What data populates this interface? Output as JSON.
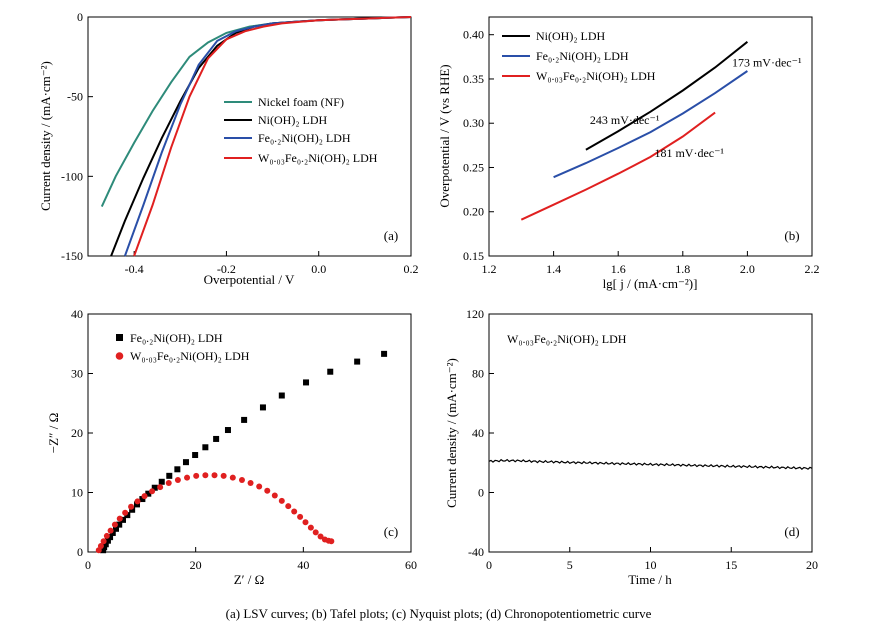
{
  "caption": "(a) LSV curves; (b) Tafel plots; (c) Nyquist plots; (d) Chronopotentiometric curve",
  "chart_data": [
    {
      "type": "line",
      "panel": "(a)",
      "xlabel": "Overpotential / V",
      "ylabel": "Current density / (mA·cm⁻²)",
      "xlim": [
        -0.5,
        0.2
      ],
      "ylim": [
        -150,
        0
      ],
      "xticks": [
        "-0.4",
        "-0.2",
        "0.0",
        "0.2"
      ],
      "yticks": [
        "-150",
        "-100",
        "-50",
        "0"
      ],
      "legend_position": "right",
      "series": [
        {
          "name": "Nickel foam (NF)",
          "color": "#2e8b7a",
          "x": [
            -0.47,
            -0.44,
            -0.4,
            -0.36,
            -0.32,
            -0.28,
            -0.24,
            -0.2,
            -0.15,
            -0.1,
            -0.05,
            0.0,
            0.05,
            0.1,
            0.15,
            0.2
          ],
          "y": [
            -119,
            -100,
            -79,
            -59,
            -41,
            -25,
            -16,
            -10,
            -6,
            -4,
            -3,
            -2,
            -1.5,
            -1,
            -0.5,
            0
          ]
        },
        {
          "name": "Ni(OH)₂ LDH",
          "color": "#000000",
          "x": [
            -0.45,
            -0.42,
            -0.38,
            -0.34,
            -0.3,
            -0.26,
            -0.22,
            -0.18,
            -0.14,
            -0.1,
            -0.05,
            0.0,
            0.05,
            0.1,
            0.15,
            0.2
          ],
          "y": [
            -150,
            -128,
            -101,
            -76,
            -53,
            -32,
            -18,
            -10,
            -6,
            -4,
            -3,
            -2,
            -1.5,
            -1,
            -0.5,
            0
          ]
        },
        {
          "name": "Fe₀.₂Ni(OH)₂ LDH",
          "color": "#2a4fa8",
          "x": [
            -0.42,
            -0.38,
            -0.34,
            -0.3,
            -0.26,
            -0.22,
            -0.18,
            -0.14,
            -0.1,
            -0.05,
            0.0,
            0.05,
            0.1,
            0.15,
            0.2
          ],
          "y": [
            -150,
            -118,
            -85,
            -55,
            -30,
            -15,
            -9,
            -6,
            -4,
            -3,
            -2,
            -1.5,
            -1,
            -0.5,
            0
          ]
        },
        {
          "name": "W₀.₀₃Fe₀.₂Ni(OH)₂ LDH",
          "color": "#e02020",
          "x": [
            -0.4,
            -0.36,
            -0.32,
            -0.28,
            -0.24,
            -0.2,
            -0.16,
            -0.12,
            -0.08,
            -0.04,
            0.0,
            0.05,
            0.1,
            0.15,
            0.2
          ],
          "y": [
            -150,
            -118,
            -82,
            -50,
            -26,
            -14,
            -9,
            -6,
            -4,
            -3,
            -2,
            -1.5,
            -1,
            -0.5,
            0
          ]
        }
      ]
    },
    {
      "type": "line",
      "panel": "(b)",
      "xlabel": "lg[ j / (mA·cm⁻²)]",
      "ylabel": "Overpotential / V (vs RHE)",
      "xlim": [
        1.2,
        2.2
      ],
      "ylim": [
        0.15,
        0.42
      ],
      "xticks": [
        "1.2",
        "1.4",
        "1.6",
        "1.8",
        "2.0",
        "2.2"
      ],
      "yticks": [
        "0.15",
        "0.20",
        "0.25",
        "0.30",
        "0.35",
        "0.40"
      ],
      "legend_position": "top-left",
      "series": [
        {
          "name": "Ni(OH)₂ LDH",
          "color": "#000000",
          "x": [
            1.5,
            1.6,
            1.7,
            1.8,
            1.9,
            2.0
          ],
          "y": [
            0.27,
            0.291,
            0.313,
            0.337,
            0.363,
            0.392
          ]
        },
        {
          "name": "Fe₀.₂Ni(OH)₂ LDH",
          "color": "#2a4fa8",
          "x": [
            1.4,
            1.5,
            1.6,
            1.7,
            1.8,
            1.9,
            2.0
          ],
          "y": [
            0.239,
            0.255,
            0.272,
            0.29,
            0.311,
            0.334,
            0.359
          ]
        },
        {
          "name": "W₀.₀₃Fe₀.₂Ni(OH)₂ LDH",
          "color": "#e02020",
          "x": [
            1.3,
            1.4,
            1.5,
            1.6,
            1.7,
            1.8,
            1.9
          ],
          "y": [
            0.191,
            0.208,
            0.225,
            0.243,
            0.262,
            0.285,
            0.312
          ]
        }
      ],
      "annotations": [
        {
          "text": "243 mV·dec⁻¹",
          "color": "#000000",
          "x": 1.62,
          "y": 0.299
        },
        {
          "text": "173 mV·dec⁻¹",
          "color": "#2a4fa8",
          "x": 2.06,
          "y": 0.364
        },
        {
          "text": "181 mV·dec⁻¹",
          "color": "#e02020",
          "x": 1.82,
          "y": 0.262
        }
      ]
    },
    {
      "type": "scatter",
      "panel": "(c)",
      "xlabel": "Z′ / Ω",
      "ylabel": "−Z″ / Ω",
      "xlim": [
        0,
        60
      ],
      "ylim": [
        0,
        40
      ],
      "xticks": [
        "0",
        "20",
        "40",
        "60"
      ],
      "yticks": [
        "0",
        "10",
        "20",
        "30",
        "40"
      ],
      "legend_position": "top-left",
      "series": [
        {
          "name": "Fe₀.₂Ni(OH)₂ LDH",
          "color": "#000000",
          "marker": "square",
          "x": [
            2.8,
            3.0,
            3.3,
            3.7,
            4.1,
            4.6,
            5.2,
            5.8,
            6.5,
            7.3,
            8.2,
            9.1,
            10.1,
            11.2,
            12.4,
            13.7,
            15.1,
            16.6,
            18.2,
            19.9,
            21.8,
            23.8,
            26.0,
            29.0,
            32.5,
            36.0,
            40.5,
            45.0,
            50.0,
            55.0
          ],
          "y": [
            0.3,
            0.8,
            1.3,
            1.9,
            2.5,
            3.2,
            3.9,
            4.6,
            5.4,
            6.2,
            7.1,
            8.0,
            8.9,
            9.8,
            10.8,
            11.8,
            12.8,
            13.9,
            15.1,
            16.3,
            17.6,
            19.0,
            20.5,
            22.2,
            24.3,
            26.3,
            28.5,
            30.3,
            32.0,
            33.3
          ]
        },
        {
          "name": "W₀.₀₃Fe₀.₂Ni(OH)₂ LDH",
          "color": "#e02020",
          "marker": "circle",
          "x": [
            2.0,
            2.4,
            2.9,
            3.5,
            4.2,
            5.0,
            5.9,
            6.9,
            8.0,
            9.2,
            10.5,
            11.9,
            13.4,
            15.0,
            16.7,
            18.4,
            20.1,
            21.8,
            23.5,
            25.2,
            26.9,
            28.6,
            30.2,
            31.8,
            33.3,
            34.7,
            36.0,
            37.2,
            38.3,
            39.4,
            40.4,
            41.4,
            42.3,
            43.2,
            44.0,
            44.7,
            45.2
          ],
          "y": [
            0.3,
            1.0,
            1.8,
            2.7,
            3.6,
            4.6,
            5.6,
            6.6,
            7.6,
            8.5,
            9.4,
            10.2,
            10.9,
            11.6,
            12.1,
            12.5,
            12.8,
            12.9,
            12.9,
            12.8,
            12.5,
            12.1,
            11.6,
            11.0,
            10.3,
            9.5,
            8.6,
            7.7,
            6.8,
            5.9,
            5.0,
            4.1,
            3.3,
            2.6,
            2.1,
            1.9,
            1.8
          ]
        }
      ]
    },
    {
      "type": "line",
      "panel": "(d)",
      "xlabel": "Time / h",
      "ylabel": "Current density / (mA·cm⁻²)",
      "xlim": [
        0,
        20
      ],
      "ylim": [
        -40,
        120
      ],
      "xticks": [
        "0",
        "5",
        "10",
        "15",
        "20"
      ],
      "yticks": [
        "-40",
        "0",
        "40",
        "80",
        "120"
      ],
      "legend_position": "top-left",
      "series": [
        {
          "name": "W₀.₀₃Fe₀.₂Ni(OH)₂ LDH",
          "color": "#000000",
          "x": [
            0,
            1,
            2,
            3,
            4,
            5,
            6,
            7,
            8,
            9,
            10,
            11,
            12,
            13,
            14,
            15,
            16,
            17,
            18,
            19,
            20
          ],
          "y": [
            21,
            21.5,
            21.3,
            20.8,
            20.6,
            20.2,
            20.0,
            19.7,
            19.4,
            19.2,
            18.9,
            18.7,
            18.4,
            18.1,
            17.9,
            17.6,
            17.4,
            17.1,
            16.8,
            16.5,
            16.2
          ]
        }
      ]
    }
  ]
}
